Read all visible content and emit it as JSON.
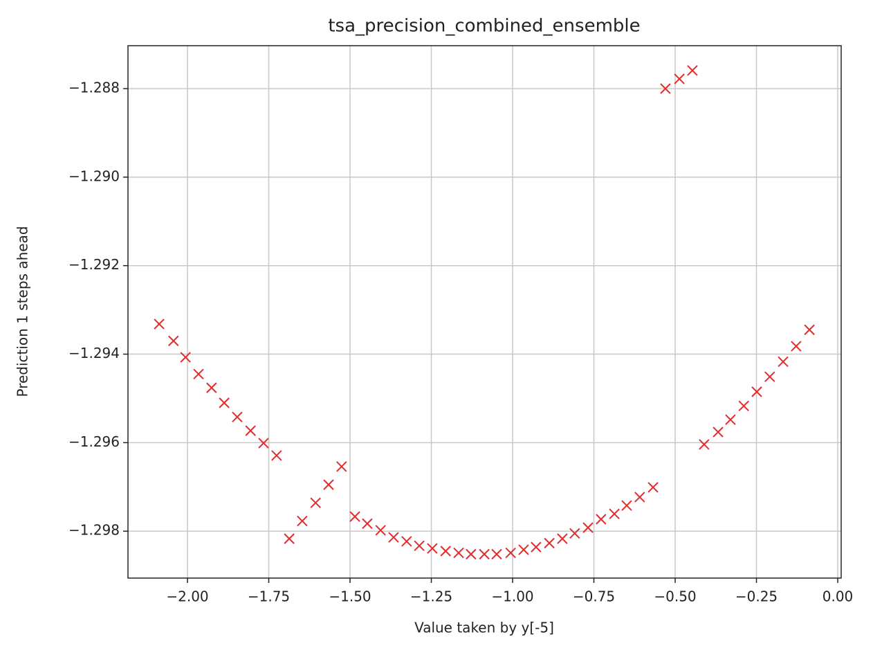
{
  "chart_data": {
    "type": "scatter",
    "title": "tsa_precision_combined_ensemble",
    "xlabel": "Value taken by y[-5]",
    "ylabel": "Prediction 1 steps ahead",
    "marker": "x",
    "color": "#e8282b",
    "grid": true,
    "xlim": [
      -2.183,
      0.0106
    ],
    "ylim": [
      -1.29906,
      -1.28703
    ],
    "xticks": [
      {
        "value": -2.0,
        "label": "−2.00"
      },
      {
        "value": -1.75,
        "label": "−1.75"
      },
      {
        "value": -1.5,
        "label": "−1.50"
      },
      {
        "value": -1.25,
        "label": "−1.25"
      },
      {
        "value": -1.0,
        "label": "−1.00"
      },
      {
        "value": -0.75,
        "label": "−0.75"
      },
      {
        "value": -0.5,
        "label": "−0.50"
      },
      {
        "value": -0.25,
        "label": "−0.25"
      },
      {
        "value": 0,
        "label": "0.00"
      }
    ],
    "yticks": [
      {
        "value": -1.288,
        "label": "−1.288"
      },
      {
        "value": -1.29,
        "label": "−1.290"
      },
      {
        "value": -1.292,
        "label": "−1.292"
      },
      {
        "value": -1.294,
        "label": "−1.294"
      },
      {
        "value": -1.296,
        "label": "−1.296"
      },
      {
        "value": -1.298,
        "label": "−1.298"
      }
    ],
    "x": [
      -2.087,
      -2.043,
      -2.006,
      -1.966,
      -1.926,
      -1.887,
      -1.847,
      -1.806,
      -1.766,
      -1.726,
      -1.687,
      -1.647,
      -1.606,
      -1.566,
      -1.526,
      -1.485,
      -1.447,
      -1.406,
      -1.366,
      -1.326,
      -1.287,
      -1.247,
      -1.206,
      -1.166,
      -1.128,
      -1.087,
      -1.049,
      -1.006,
      -0.966,
      -0.928,
      -0.887,
      -0.847,
      -0.809,
      -0.768,
      -0.728,
      -0.687,
      -0.649,
      -0.609,
      -0.568,
      -0.53,
      -0.487,
      -0.447,
      -0.411,
      -0.368,
      -0.33,
      -0.289,
      -0.249,
      -0.209,
      -0.168,
      -0.128,
      -0.087
    ],
    "values": [
      -1.29332,
      -1.2937,
      -1.29407,
      -1.29445,
      -1.29476,
      -1.2951,
      -1.29542,
      -1.29573,
      -1.29601,
      -1.29629,
      -1.29817,
      -1.29777,
      -1.29736,
      -1.29695,
      -1.29654,
      -1.29767,
      -1.29783,
      -1.29798,
      -1.29814,
      -1.29823,
      -1.29833,
      -1.29839,
      -1.29845,
      -1.29849,
      -1.29852,
      -1.29852,
      -1.29852,
      -1.29849,
      -1.29842,
      -1.29836,
      -1.29827,
      -1.29817,
      -1.29805,
      -1.29792,
      -1.29773,
      -1.29761,
      -1.29742,
      -1.29723,
      -1.29701,
      -1.288,
      -1.28778,
      -1.28759,
      -1.29604,
      -1.29576,
      -1.29548,
      -1.29517,
      -1.29485,
      -1.29451,
      -1.29417,
      -1.29382,
      -1.29345
    ]
  }
}
